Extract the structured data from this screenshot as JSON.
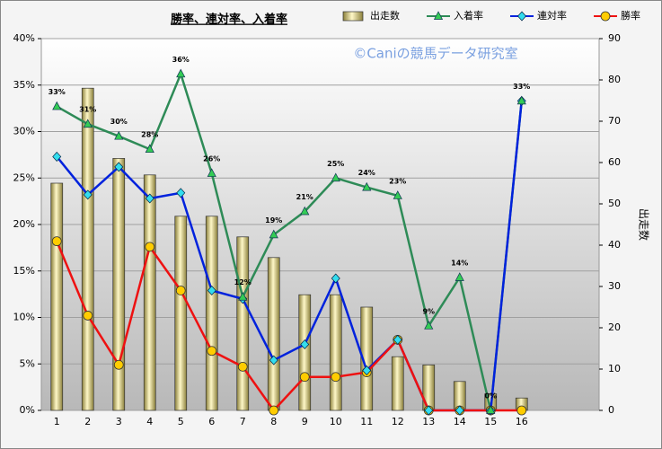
{
  "chart_data": {
    "type": "bar",
    "title": "勝率、連対率、入着率",
    "watermark": "©Caniの競馬データ研究室",
    "y2_label": "出走数",
    "categories": [
      "1",
      "2",
      "3",
      "4",
      "5",
      "6",
      "7",
      "8",
      "9",
      "10",
      "11",
      "12",
      "13",
      "14",
      "15",
      "16",
      null,
      null
    ],
    "ylim": [
      0,
      40
    ],
    "yticks": [
      {
        "value": 0,
        "label": "0%"
      },
      {
        "value": 5,
        "label": "5%"
      },
      {
        "value": 10,
        "label": "10%"
      },
      {
        "value": 15,
        "label": "15%"
      },
      {
        "value": 20,
        "label": "20%"
      },
      {
        "value": 25,
        "label": "25%"
      },
      {
        "value": 30,
        "label": "30%"
      },
      {
        "value": 35,
        "label": "35%"
      },
      {
        "value": 40,
        "label": "40%"
      }
    ],
    "y2lim": [
      0,
      90
    ],
    "y2ticks": [
      0,
      10,
      20,
      30,
      40,
      50,
      60,
      70,
      80,
      90
    ],
    "grid": true,
    "series": [
      {
        "name": "出走数",
        "type": "bar",
        "axis": "y2",
        "color": "#f0e6a0",
        "values": [
          55,
          78,
          61,
          57,
          47,
          47,
          42,
          37,
          28,
          28,
          25,
          13,
          11,
          7,
          4,
          3,
          null,
          null
        ]
      },
      {
        "name": "入着率",
        "type": "line",
        "marker": "triangle",
        "color": "#2e8b57",
        "values": [
          32.7,
          30.8,
          29.5,
          28.1,
          36.2,
          25.5,
          12.2,
          18.9,
          21.4,
          25.0,
          24.0,
          23.1,
          9.1,
          14.3,
          0,
          33.3,
          null,
          null
        ],
        "value_labels": [
          "33%",
          "31%",
          "30%",
          "28%",
          "36%",
          "26%",
          "12%",
          "19%",
          "21%",
          "25%",
          "24%",
          "23%",
          "9%",
          "14%",
          "0%",
          "33%",
          null,
          null
        ]
      },
      {
        "name": "連対率",
        "type": "line",
        "marker": "diamond",
        "color": "#0022dd",
        "values": [
          27.3,
          23.2,
          26.2,
          22.8,
          23.4,
          12.9,
          12.0,
          5.4,
          7.1,
          14.2,
          4.3,
          7.6,
          0,
          0,
          0,
          33.3,
          null,
          null
        ]
      },
      {
        "name": "勝率",
        "type": "line",
        "marker": "circle",
        "color": "#ee1111",
        "values": [
          18.2,
          10.2,
          4.9,
          17.6,
          12.9,
          6.4,
          4.7,
          0,
          3.6,
          3.6,
          4.1,
          7.6,
          0,
          0,
          0,
          0,
          null,
          null
        ]
      }
    ]
  }
}
